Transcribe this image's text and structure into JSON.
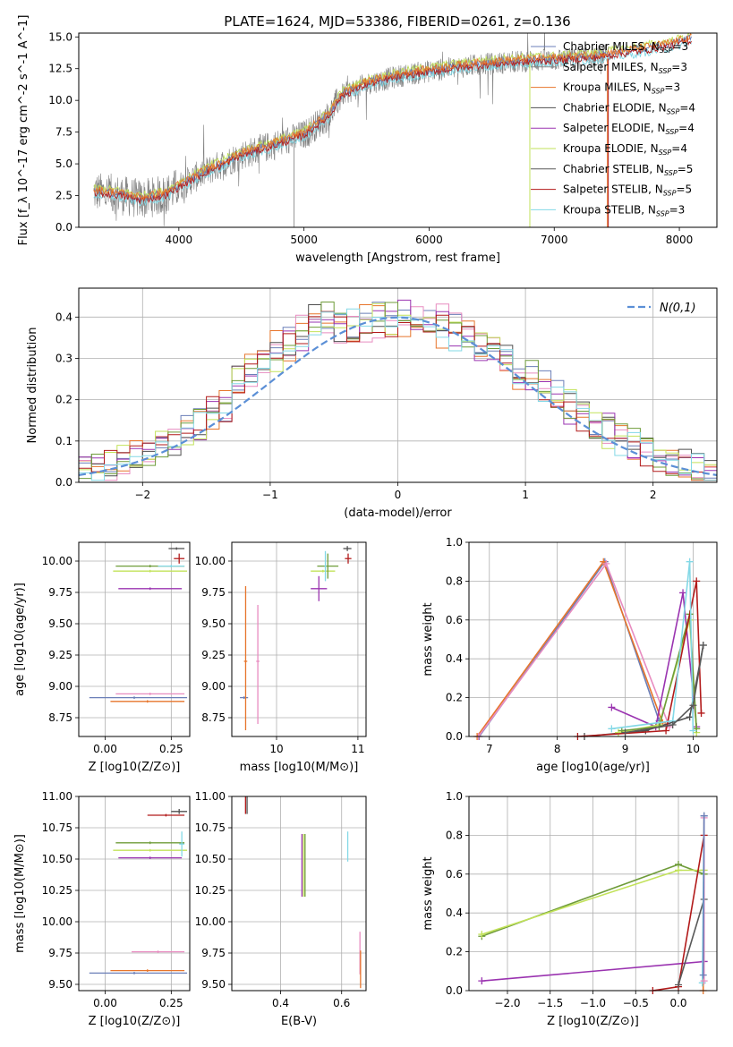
{
  "figure_title": "PLATE=1624, MJD=53386, FIBERID=0261, z=0.136",
  "colors": {
    "Chabrier MILES": "#6b7fb8",
    "Salpeter MILES": "#8a8a8a",
    "Kroupa MILES": "#e7752b",
    "Chabrier ELODIE": "#4f4f4f",
    "Salpeter ELODIE": "#9a33b0",
    "Kroupa ELODIE": "#c2e25a",
    "Chabrier STELIB": "#595959",
    "Salpeter STELIB": "#b21a1a",
    "Kroupa STELIB": "#83d8e6",
    "pink": "#e88cc0",
    "olive": "#6f9c3a",
    "gauss": "#5b8fd6"
  },
  "chart_data": [
    {
      "id": "spectrum",
      "type": "line",
      "title": "PLATE=1624, MJD=53386, FIBERID=0261, z=0.136",
      "xlabel": "wavelength [Angstrom, rest frame]",
      "ylabel": "Flux [f_λ 10^-17 erg cm^-2 s^-1 A^-1]",
      "xlim": [
        3200,
        8300
      ],
      "ylim": [
        0,
        15.3
      ],
      "xticks": [
        4000,
        5000,
        6000,
        7000,
        8000
      ],
      "yticks": [
        0.0,
        2.5,
        5.0,
        7.5,
        10.0,
        12.5,
        15.0
      ],
      "legend_position": "top-right",
      "legend": [
        {
          "name": "Chabrier MILES",
          "nssp": "3"
        },
        {
          "name": "Salpeter MILES",
          "nssp": "3"
        },
        {
          "name": "Kroupa MILES",
          "nssp": "3"
        },
        {
          "name": "Chabrier ELODIE",
          "nssp": "4"
        },
        {
          "name": "Salpeter ELODIE",
          "nssp": "4"
        },
        {
          "name": "Kroupa ELODIE",
          "nssp": "4"
        },
        {
          "name": "Chabrier STELIB",
          "nssp": "5"
        },
        {
          "name": "Salpeter STELIB",
          "nssp": "5"
        },
        {
          "name": "Kroupa STELIB",
          "nssp": "3"
        }
      ],
      "continuum": [
        [
          3300,
          2.8
        ],
        [
          3500,
          2.6
        ],
        [
          3700,
          2.2
        ],
        [
          3900,
          2.6
        ],
        [
          4000,
          3.2
        ],
        [
          4200,
          4.3
        ],
        [
          4500,
          5.7
        ],
        [
          4800,
          6.6
        ],
        [
          5000,
          7.3
        ],
        [
          5200,
          8.8
        ],
        [
          5300,
          10.4
        ],
        [
          5500,
          11.3
        ],
        [
          5800,
          12.0
        ],
        [
          6000,
          12.3
        ],
        [
          6300,
          12.7
        ],
        [
          6500,
          12.9
        ],
        [
          6800,
          13.1
        ],
        [
          7000,
          13.2
        ],
        [
          7300,
          13.4
        ],
        [
          7600,
          13.8
        ],
        [
          7900,
          14.3
        ],
        [
          8100,
          14.8
        ]
      ]
    },
    {
      "id": "residuals",
      "type": "histogram",
      "xlabel": "(data-model)/error",
      "ylabel": "Normed distribution",
      "xlim": [
        -2.5,
        2.5
      ],
      "ylim": [
        0,
        0.47
      ],
      "xticks": [
        -2,
        -1,
        0,
        1,
        2
      ],
      "yticks": [
        0.0,
        0.1,
        0.2,
        0.3,
        0.4
      ],
      "legend_position": "top-right",
      "gauss_label": "N(0,1)",
      "bin_width": 0.1
    },
    {
      "id": "z_age",
      "type": "errorbar",
      "xlabel": "Z [log10(Z/Z⊙)]",
      "ylabel": "age [log10(age/yr)]",
      "xlim": [
        -0.1,
        0.32
      ],
      "ylim": [
        8.6,
        10.15
      ],
      "xticks": [
        0.0,
        0.25
      ],
      "yticks": [
        8.75,
        9.0,
        9.25,
        9.5,
        9.75,
        10.0
      ],
      "points": [
        {
          "model": "Chabrier MILES",
          "x": 0.11,
          "xerr": [
            0.17,
            0.2
          ],
          "y": 8.91,
          "yerr": [
            0.01,
            0.01
          ]
        },
        {
          "model": "Kroupa MILES",
          "x": 0.16,
          "xerr": [
            0.14,
            0.14
          ],
          "y": 8.88,
          "yerr": [
            0.01,
            0.01
          ]
        },
        {
          "model": "pink",
          "x": 0.17,
          "xerr": [
            0.13,
            0.13
          ],
          "y": 8.94,
          "yerr": [
            0.01,
            0.01
          ]
        },
        {
          "model": "Chabrier ELODIE",
          "x": 0.27,
          "xerr": [
            0.03,
            0.03
          ],
          "y": 10.1,
          "yerr": [
            0.01,
            0.01
          ]
        },
        {
          "model": "Salpeter ELODIE",
          "x": 0.17,
          "xerr": [
            0.12,
            0.12
          ],
          "y": 9.78,
          "yerr": [
            0.01,
            0.01
          ]
        },
        {
          "model": "Kroupa ELODIE",
          "x": 0.17,
          "xerr": [
            0.14,
            0.14
          ],
          "y": 9.92,
          "yerr": [
            0.01,
            0.01
          ]
        },
        {
          "model": "olive",
          "x": 0.17,
          "xerr": [
            0.13,
            0.13
          ],
          "y": 9.96,
          "yerr": [
            0.01,
            0.01
          ]
        },
        {
          "model": "Salpeter STELIB",
          "x": 0.28,
          "xerr": [
            0.02,
            0.02
          ],
          "y": 10.02,
          "yerr": [
            0.04,
            0.04
          ]
        },
        {
          "model": "Kroupa STELIB",
          "x": 0.25,
          "xerr": [
            0.05,
            0.05
          ],
          "y": 9.96,
          "yerr": [
            0.01,
            0.01
          ]
        }
      ]
    },
    {
      "id": "mass_age",
      "type": "errorbar",
      "xlabel": "mass [log10(M/M⊙)]",
      "ylabel": "",
      "xlim": [
        9.45,
        11.1
      ],
      "ylim": [
        8.6,
        10.15
      ],
      "xticks": [
        10,
        11
      ],
      "yticks": [
        8.75,
        9.0,
        9.25,
        9.5,
        9.75,
        10.0
      ],
      "points": [
        {
          "model": "Chabrier MILES",
          "x": 9.6,
          "xerr": [
            0.05,
            0.05
          ],
          "y": 8.91,
          "yerr": [
            0.01,
            0.01
          ]
        },
        {
          "model": "Kroupa MILES",
          "x": 9.62,
          "xerr": [
            0.02,
            0.02
          ],
          "y": 9.2,
          "yerr": [
            0.55,
            0.6
          ]
        },
        {
          "model": "pink",
          "x": 9.77,
          "xerr": [
            0.02,
            0.02
          ],
          "y": 9.2,
          "yerr": [
            0.5,
            0.45
          ]
        },
        {
          "model": "Chabrier ELODIE",
          "x": 10.87,
          "xerr": [
            0.05,
            0.05
          ],
          "y": 10.1,
          "yerr": [
            0.02,
            0.02
          ]
        },
        {
          "model": "Salpeter ELODIE",
          "x": 10.52,
          "xerr": [
            0.1,
            0.1
          ],
          "y": 9.78,
          "yerr": [
            0.1,
            0.1
          ]
        },
        {
          "model": "Kroupa ELODIE",
          "x": 10.57,
          "xerr": [
            0.15,
            0.15
          ],
          "y": 9.92,
          "yerr": [
            0.01,
            0.01
          ]
        },
        {
          "model": "olive",
          "x": 10.63,
          "xerr": [
            0.13,
            0.13
          ],
          "y": 9.96,
          "yerr": [
            0.1,
            0.1
          ]
        },
        {
          "model": "Salpeter STELIB",
          "x": 10.88,
          "xerr": [
            0.04,
            0.04
          ],
          "y": 10.02,
          "yerr": [
            0.04,
            0.04
          ]
        },
        {
          "model": "Kroupa STELIB",
          "x": 10.6,
          "xerr": [
            0.01,
            0.01
          ],
          "y": 9.96,
          "yerr": [
            0.12,
            0.12
          ]
        }
      ]
    },
    {
      "id": "weight_age",
      "type": "line",
      "xlabel": "age [log10(age/yr)]",
      "ylabel": "mass weight",
      "xlim": [
        6.7,
        10.35
      ],
      "ylim": [
        0,
        1.0
      ],
      "xticks": [
        7,
        8,
        9,
        10
      ],
      "yticks": [
        0.0,
        0.2,
        0.4,
        0.6,
        0.8,
        1.0
      ],
      "series": [
        {
          "model": "Chabrier MILES",
          "points": [
            [
              6.85,
              0.0
            ],
            [
              8.7,
              0.9
            ],
            [
              9.5,
              0.08
            ]
          ]
        },
        {
          "model": "Kroupa MILES",
          "points": [
            [
              6.82,
              0.0
            ],
            [
              8.68,
              0.9
            ],
            [
              9.55,
              0.07
            ]
          ]
        },
        {
          "model": "pink",
          "points": [
            [
              6.84,
              0.0
            ],
            [
              8.72,
              0.89
            ],
            [
              9.65,
              0.05
            ]
          ]
        },
        {
          "model": "Chabrier ELODIE",
          "points": [
            [
              8.4,
              0.0
            ],
            [
              9.3,
              0.03
            ],
            [
              9.95,
              0.1
            ],
            [
              10.15,
              0.47
            ]
          ]
        },
        {
          "model": "Salpeter ELODIE",
          "points": [
            [
              8.8,
              0.15
            ],
            [
              9.45,
              0.05
            ],
            [
              9.85,
              0.74
            ],
            [
              10.05,
              0.05
            ]
          ]
        },
        {
          "model": "Kroupa ELODIE",
          "points": [
            [
              8.9,
              0.02
            ],
            [
              9.5,
              0.06
            ],
            [
              9.95,
              0.6
            ],
            [
              10.05,
              0.02
            ]
          ]
        },
        {
          "model": "olive",
          "points": [
            [
              8.95,
              0.03
            ],
            [
              9.5,
              0.05
            ],
            [
              9.95,
              0.63
            ],
            [
              10.05,
              0.04
            ]
          ]
        },
        {
          "model": "Salpeter STELIB",
          "points": [
            [
              8.3,
              0.0
            ],
            [
              9.6,
              0.03
            ],
            [
              10.05,
              0.8
            ],
            [
              10.12,
              0.12
            ]
          ]
        },
        {
          "model": "Kroupa STELIB",
          "points": [
            [
              8.8,
              0.04
            ],
            [
              9.7,
              0.08
            ],
            [
              9.95,
              0.9
            ],
            [
              10.0,
              0.03
            ]
          ]
        },
        {
          "model": "Chabrier STELIB",
          "points": [
            [
              9.0,
              0.02
            ],
            [
              9.7,
              0.06
            ],
            [
              10.0,
              0.16
            ],
            [
              10.15,
              0.47
            ]
          ]
        }
      ]
    },
    {
      "id": "z_mass",
      "type": "errorbar",
      "xlabel": "Z [log10(Z/Z⊙)]",
      "ylabel": "mass [log10(M/M⊙)]",
      "xlim": [
        -0.1,
        0.32
      ],
      "ylim": [
        9.45,
        11.0
      ],
      "xticks": [
        0.0,
        0.25
      ],
      "yticks": [
        9.5,
        9.75,
        10.0,
        10.25,
        10.5,
        10.75,
        11.0
      ],
      "points": [
        {
          "model": "Chabrier MILES",
          "x": 0.11,
          "xerr": [
            0.17,
            0.2
          ],
          "y": 9.59,
          "yerr": [
            0.01,
            0.01
          ]
        },
        {
          "model": "Kroupa MILES",
          "x": 0.16,
          "xerr": [
            0.14,
            0.14
          ],
          "y": 9.61,
          "yerr": [
            0.01,
            0.01
          ]
        },
        {
          "model": "pink",
          "x": 0.2,
          "xerr": [
            0.1,
            0.1
          ],
          "y": 9.76,
          "yerr": [
            0.01,
            0.01
          ]
        },
        {
          "model": "Chabrier ELODIE",
          "x": 0.28,
          "xerr": [
            0.03,
            0.03
          ],
          "y": 10.88,
          "yerr": [
            0.02,
            0.02
          ]
        },
        {
          "model": "Salpeter ELODIE",
          "x": 0.17,
          "xerr": [
            0.12,
            0.12
          ],
          "y": 10.51,
          "yerr": [
            0.01,
            0.01
          ]
        },
        {
          "model": "Kroupa ELODIE",
          "x": 0.17,
          "xerr": [
            0.14,
            0.14
          ],
          "y": 10.57,
          "yerr": [
            0.01,
            0.01
          ]
        },
        {
          "model": "olive",
          "x": 0.17,
          "xerr": [
            0.13,
            0.13
          ],
          "y": 10.63,
          "yerr": [
            0.01,
            0.01
          ]
        },
        {
          "model": "Salpeter STELIB",
          "x": 0.23,
          "xerr": [
            0.07,
            0.07
          ],
          "y": 10.85,
          "yerr": [
            0.01,
            0.01
          ]
        },
        {
          "model": "Kroupa STELIB",
          "x": 0.29,
          "xerr": [
            0.01,
            0.01
          ],
          "y": 10.62,
          "yerr": [
            0.1,
            0.1
          ]
        }
      ]
    },
    {
      "id": "ebv_mass",
      "type": "errorbar",
      "xlabel": "E(B-V)",
      "ylabel": "",
      "xlim": [
        0.24,
        0.68
      ],
      "ylim": [
        9.45,
        11.0
      ],
      "xticks": [
        0.4,
        0.6
      ],
      "yticks": [
        9.5,
        9.75,
        10.0,
        10.25,
        10.5,
        10.75,
        11.0
      ],
      "points": [
        {
          "model": "Salpeter STELIB",
          "x": 0.285,
          "xerr": [
            0.0,
            0.0
          ],
          "y": 10.93,
          "yerr": [
            0.07,
            0.07
          ]
        },
        {
          "model": "Chabrier ELODIE",
          "x": 0.29,
          "xerr": [
            0.0,
            0.0
          ],
          "y": 10.93,
          "yerr": [
            0.07,
            0.07
          ]
        },
        {
          "model": "Salpeter ELODIE",
          "x": 0.47,
          "xerr": [
            0.0,
            0.0
          ],
          "y": 10.45,
          "yerr": [
            0.25,
            0.25
          ]
        },
        {
          "model": "Kroupa ELODIE",
          "x": 0.475,
          "xerr": [
            0.0,
            0.0
          ],
          "y": 10.45,
          "yerr": [
            0.25,
            0.25
          ]
        },
        {
          "model": "olive",
          "x": 0.48,
          "xerr": [
            0.0,
            0.0
          ],
          "y": 10.45,
          "yerr": [
            0.25,
            0.25
          ]
        },
        {
          "model": "Kroupa STELIB",
          "x": 0.62,
          "xerr": [
            0.0,
            0.0
          ],
          "y": 10.6,
          "yerr": [
            0.12,
            0.12
          ]
        },
        {
          "model": "pink",
          "x": 0.66,
          "xerr": [
            0.0,
            0.0
          ],
          "y": 9.75,
          "yerr": [
            0.17,
            0.17
          ]
        },
        {
          "model": "Kroupa MILES",
          "x": 0.662,
          "xerr": [
            0.0,
            0.0
          ],
          "y": 9.62,
          "yerr": [
            0.15,
            0.15
          ]
        }
      ]
    },
    {
      "id": "weight_z",
      "type": "line",
      "xlabel": "Z [log10(Z/Z⊙)]",
      "ylabel": "mass weight",
      "xlim": [
        -2.45,
        0.45
      ],
      "ylim": [
        0,
        1.0
      ],
      "xticks": [
        -2.0,
        -1.5,
        -1.0,
        -0.5,
        0.0
      ],
      "yticks": [
        0.0,
        0.2,
        0.4,
        0.6,
        0.8,
        1.0
      ],
      "series": [
        {
          "model": "olive",
          "points": [
            [
              -2.3,
              0.28
            ],
            [
              0.0,
              0.65
            ],
            [
              0.3,
              0.6
            ]
          ]
        },
        {
          "model": "Kroupa ELODIE",
          "points": [
            [
              -2.3,
              0.29
            ],
            [
              0.0,
              0.62
            ],
            [
              0.3,
              0.62
            ]
          ]
        },
        {
          "model": "Salpeter ELODIE",
          "points": [
            [
              -2.3,
              0.05
            ],
            [
              0.3,
              0.15
            ]
          ]
        },
        {
          "model": "Salpeter STELIB",
          "points": [
            [
              -0.3,
              0.0
            ],
            [
              0.0,
              0.02
            ],
            [
              0.3,
              0.8
            ]
          ]
        },
        {
          "model": "Chabrier STELIB",
          "points": [
            [
              0.0,
              0.03
            ],
            [
              0.3,
              0.47
            ]
          ]
        },
        {
          "model": "Kroupa MILES",
          "points": [
            [
              0.29,
              0.0
            ],
            [
              0.3,
              0.9
            ]
          ]
        },
        {
          "model": "Kroupa STELIB",
          "points": [
            [
              0.28,
              0.04
            ],
            [
              0.3,
              0.9
            ]
          ]
        },
        {
          "model": "pink",
          "points": [
            [
              0.3,
              0.05
            ],
            [
              0.3,
              0.89
            ]
          ]
        },
        {
          "model": "Chabrier MILES",
          "points": [
            [
              0.29,
              0.08
            ],
            [
              0.3,
              0.9
            ]
          ]
        }
      ]
    }
  ]
}
